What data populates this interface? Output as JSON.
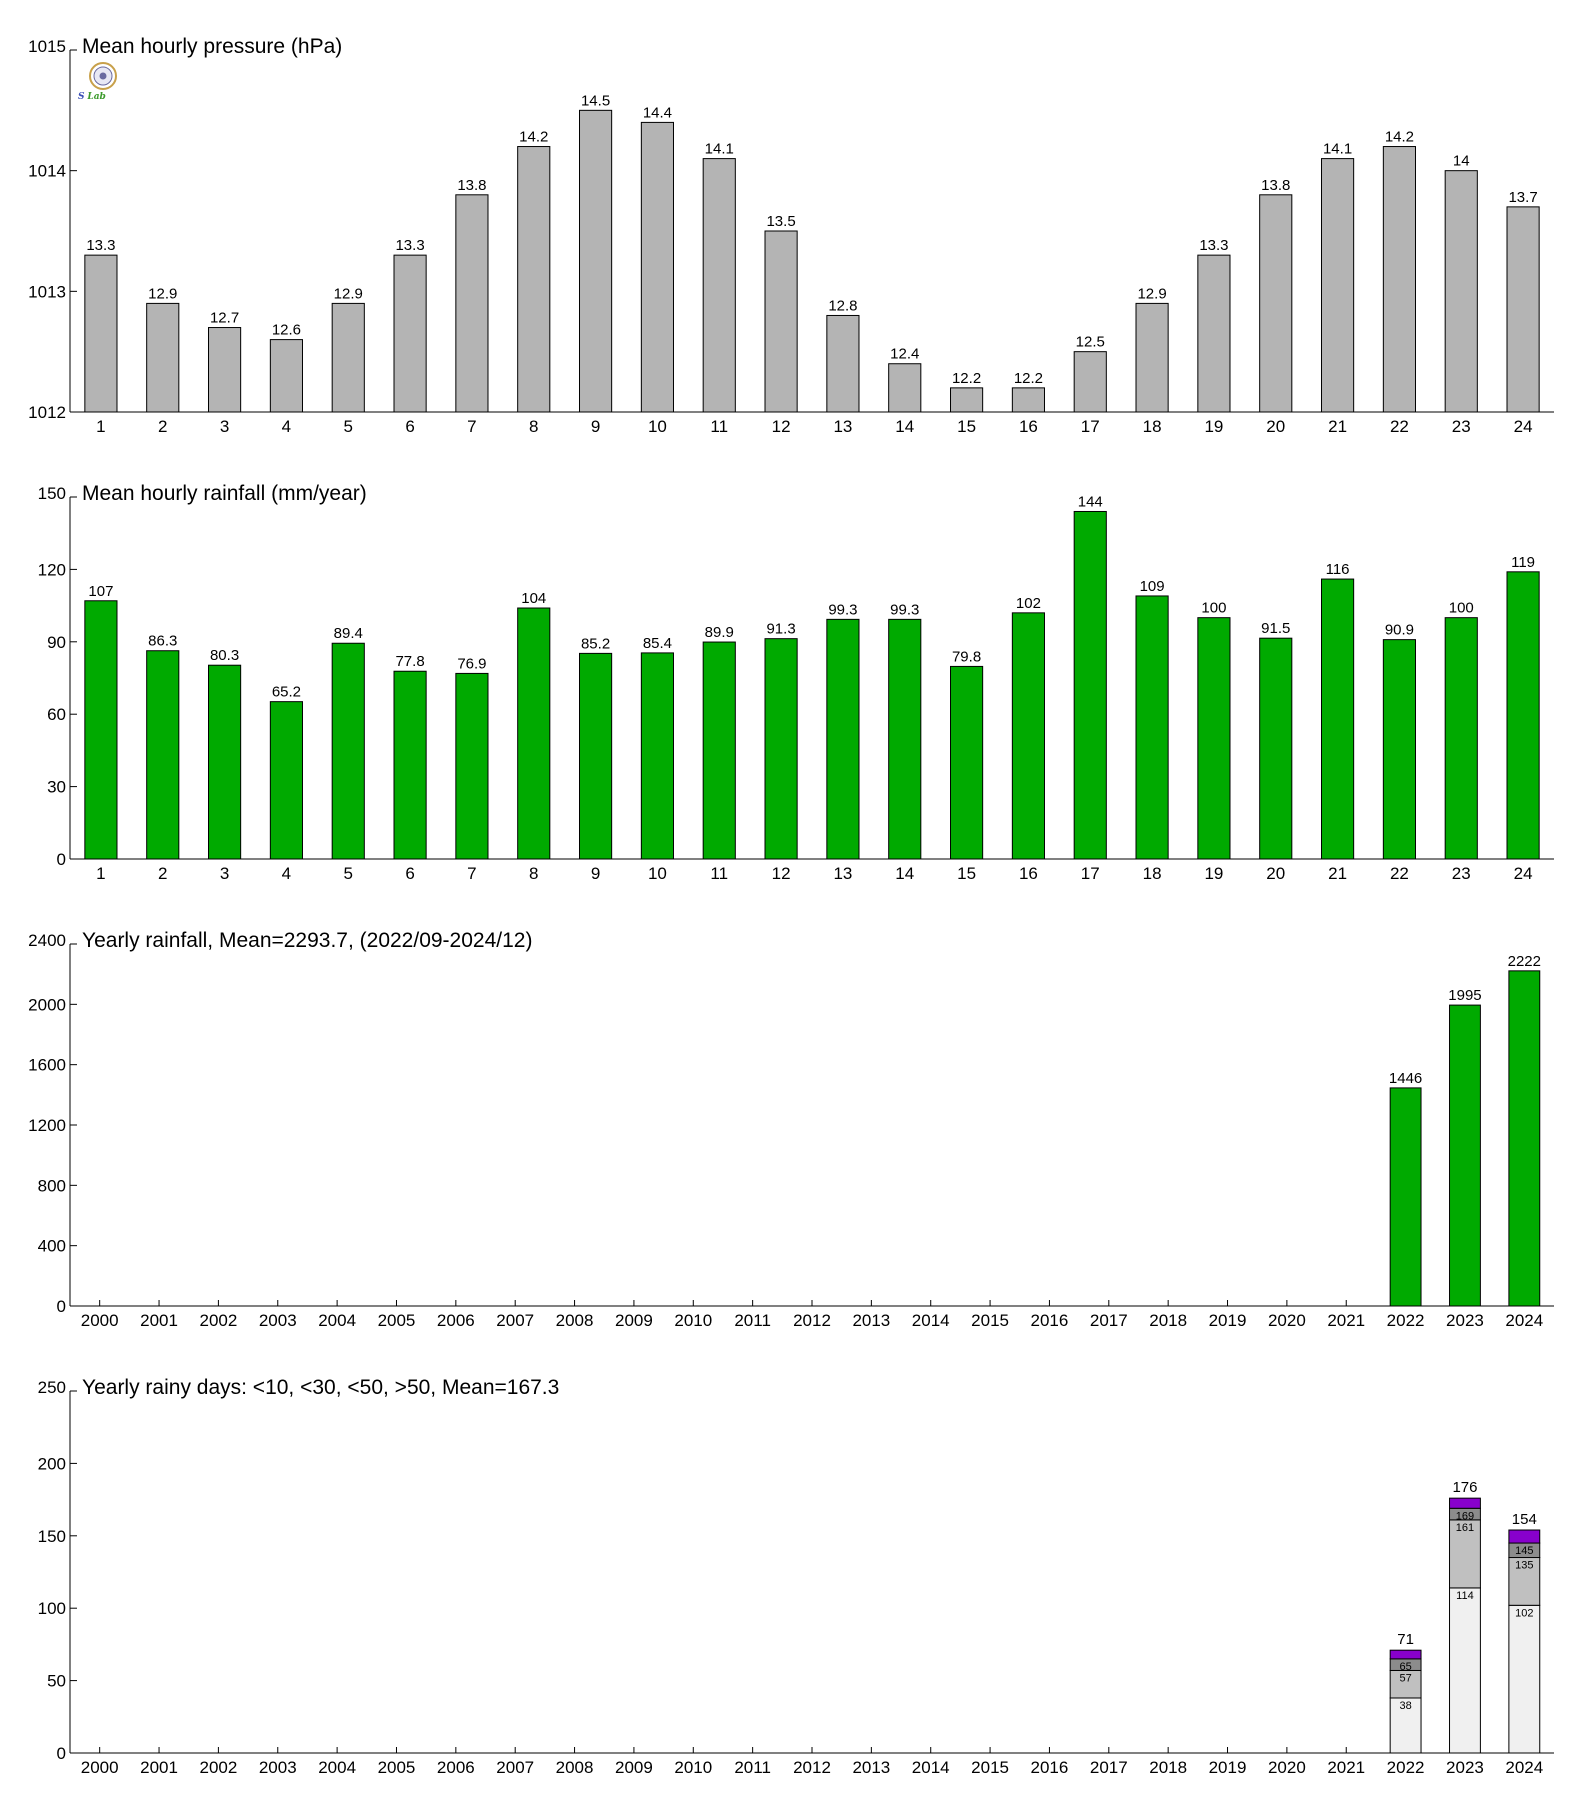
{
  "logo": {
    "text_left": "S",
    "text_right": "Lab"
  },
  "chart_data": [
    {
      "type": "bar",
      "title": "Mean hourly pressure (hPa)",
      "categories": [
        "1",
        "2",
        "3",
        "4",
        "5",
        "6",
        "7",
        "8",
        "9",
        "10",
        "11",
        "12",
        "13",
        "14",
        "15",
        "16",
        "17",
        "18",
        "19",
        "20",
        "21",
        "22",
        "23",
        "24"
      ],
      "values": [
        1013.3,
        1012.9,
        1012.7,
        1012.6,
        1012.9,
        1013.3,
        1013.8,
        1014.2,
        1014.5,
        1014.4,
        1014.1,
        1013.5,
        1012.8,
        1012.4,
        1012.2,
        1012.2,
        1012.5,
        1012.9,
        1013.3,
        1013.8,
        1014.1,
        1014.2,
        1014.0,
        1013.7
      ],
      "data_labels": [
        "13.3",
        "12.9",
        "12.7",
        "12.6",
        "12.9",
        "13.3",
        "13.8",
        "14.2",
        "14.5",
        "14.4",
        "14.1",
        "13.5",
        "12.8",
        "12.4",
        "12.2",
        "12.2",
        "12.5",
        "12.9",
        "13.3",
        "13.8",
        "14.1",
        "14.2",
        "14",
        "13.7"
      ],
      "ylim": [
        1012,
        1015
      ],
      "yticks": [
        1012,
        1013,
        1014,
        1015
      ],
      "color": "#b4b4b4"
    },
    {
      "type": "bar",
      "title": "Mean hourly rainfall (mm/year)",
      "categories": [
        "1",
        "2",
        "3",
        "4",
        "5",
        "6",
        "7",
        "8",
        "9",
        "10",
        "11",
        "12",
        "13",
        "14",
        "15",
        "16",
        "17",
        "18",
        "19",
        "20",
        "21",
        "22",
        "23",
        "24"
      ],
      "values": [
        107,
        86.3,
        80.3,
        65.2,
        89.4,
        77.8,
        76.9,
        104,
        85.2,
        85.4,
        89.9,
        91.3,
        99.3,
        99.3,
        79.8,
        102,
        144,
        109,
        100,
        91.5,
        116,
        90.9,
        100,
        119
      ],
      "data_labels": [
        "107",
        "86.3",
        "80.3",
        "65.2",
        "89.4",
        "77.8",
        "76.9",
        "104",
        "85.2",
        "85.4",
        "89.9",
        "91.3",
        "99.3",
        "99.3",
        "79.8",
        "102",
        "144",
        "109",
        "100",
        "91.5",
        "116",
        "90.9",
        "100",
        "119"
      ],
      "ylim": [
        0,
        150
      ],
      "yticks": [
        0,
        30,
        60,
        90,
        120,
        150
      ],
      "color": "#00aa00"
    },
    {
      "type": "bar",
      "title": "Yearly rainfall, Mean=2293.7, (2022/09-2024/12)",
      "categories": [
        "2000",
        "2001",
        "2002",
        "2003",
        "2004",
        "2005",
        "2006",
        "2007",
        "2008",
        "2009",
        "2010",
        "2011",
        "2012",
        "2013",
        "2014",
        "2015",
        "2016",
        "2017",
        "2018",
        "2019",
        "2020",
        "2021",
        "2022",
        "2023",
        "2024"
      ],
      "values": [
        null,
        null,
        null,
        null,
        null,
        null,
        null,
        null,
        null,
        null,
        null,
        null,
        null,
        null,
        null,
        null,
        null,
        null,
        null,
        null,
        null,
        null,
        1446,
        1995,
        2222
      ],
      "data_labels": [
        "",
        "",
        "",
        "",
        "",
        "",
        "",
        "",
        "",
        "",
        "",
        "",
        "",
        "",
        "",
        "",
        "",
        "",
        "",
        "",
        "",
        "",
        "1446",
        "1995",
        "2222"
      ],
      "ylim": [
        0,
        2400
      ],
      "yticks": [
        0,
        400,
        800,
        1200,
        1600,
        2000,
        2400
      ],
      "color": "#00aa00"
    },
    {
      "type": "bar",
      "stacked": true,
      "title": "Yearly rainy days: <10, <30, <50, >50, Mean=167.3",
      "categories": [
        "2000",
        "2001",
        "2002",
        "2003",
        "2004",
        "2005",
        "2006",
        "2007",
        "2008",
        "2009",
        "2010",
        "2011",
        "2012",
        "2013",
        "2014",
        "2015",
        "2016",
        "2017",
        "2018",
        "2019",
        "2020",
        "2021",
        "2022",
        "2023",
        "2024"
      ],
      "cumulative_series": [
        {
          "color": "#f0f0f0",
          "values": [
            null,
            null,
            null,
            null,
            null,
            null,
            null,
            null,
            null,
            null,
            null,
            null,
            null,
            null,
            null,
            null,
            null,
            null,
            null,
            null,
            null,
            null,
            38,
            114,
            102
          ]
        },
        {
          "color": "#c0c0c0",
          "values": [
            null,
            null,
            null,
            null,
            null,
            null,
            null,
            null,
            null,
            null,
            null,
            null,
            null,
            null,
            null,
            null,
            null,
            null,
            null,
            null,
            null,
            null,
            57,
            161,
            135
          ]
        },
        {
          "color": "#8c8c8c",
          "values": [
            null,
            null,
            null,
            null,
            null,
            null,
            null,
            null,
            null,
            null,
            null,
            null,
            null,
            null,
            null,
            null,
            null,
            null,
            null,
            null,
            null,
            null,
            65,
            169,
            145
          ]
        },
        {
          "color": "#8800cc",
          "values": [
            null,
            null,
            null,
            null,
            null,
            null,
            null,
            null,
            null,
            null,
            null,
            null,
            null,
            null,
            null,
            null,
            null,
            null,
            null,
            null,
            null,
            null,
            71,
            176,
            154
          ]
        }
      ],
      "total_labels": [
        "",
        "",
        "",
        "",
        "",
        "",
        "",
        "",
        "",
        "",
        "",
        "",
        "",
        "",
        "",
        "",
        "",
        "",
        "",
        "",
        "",
        "",
        "71",
        "176",
        "154"
      ],
      "ylim": [
        0,
        250
      ],
      "yticks": [
        0,
        50,
        100,
        150,
        200,
        250
      ]
    }
  ]
}
